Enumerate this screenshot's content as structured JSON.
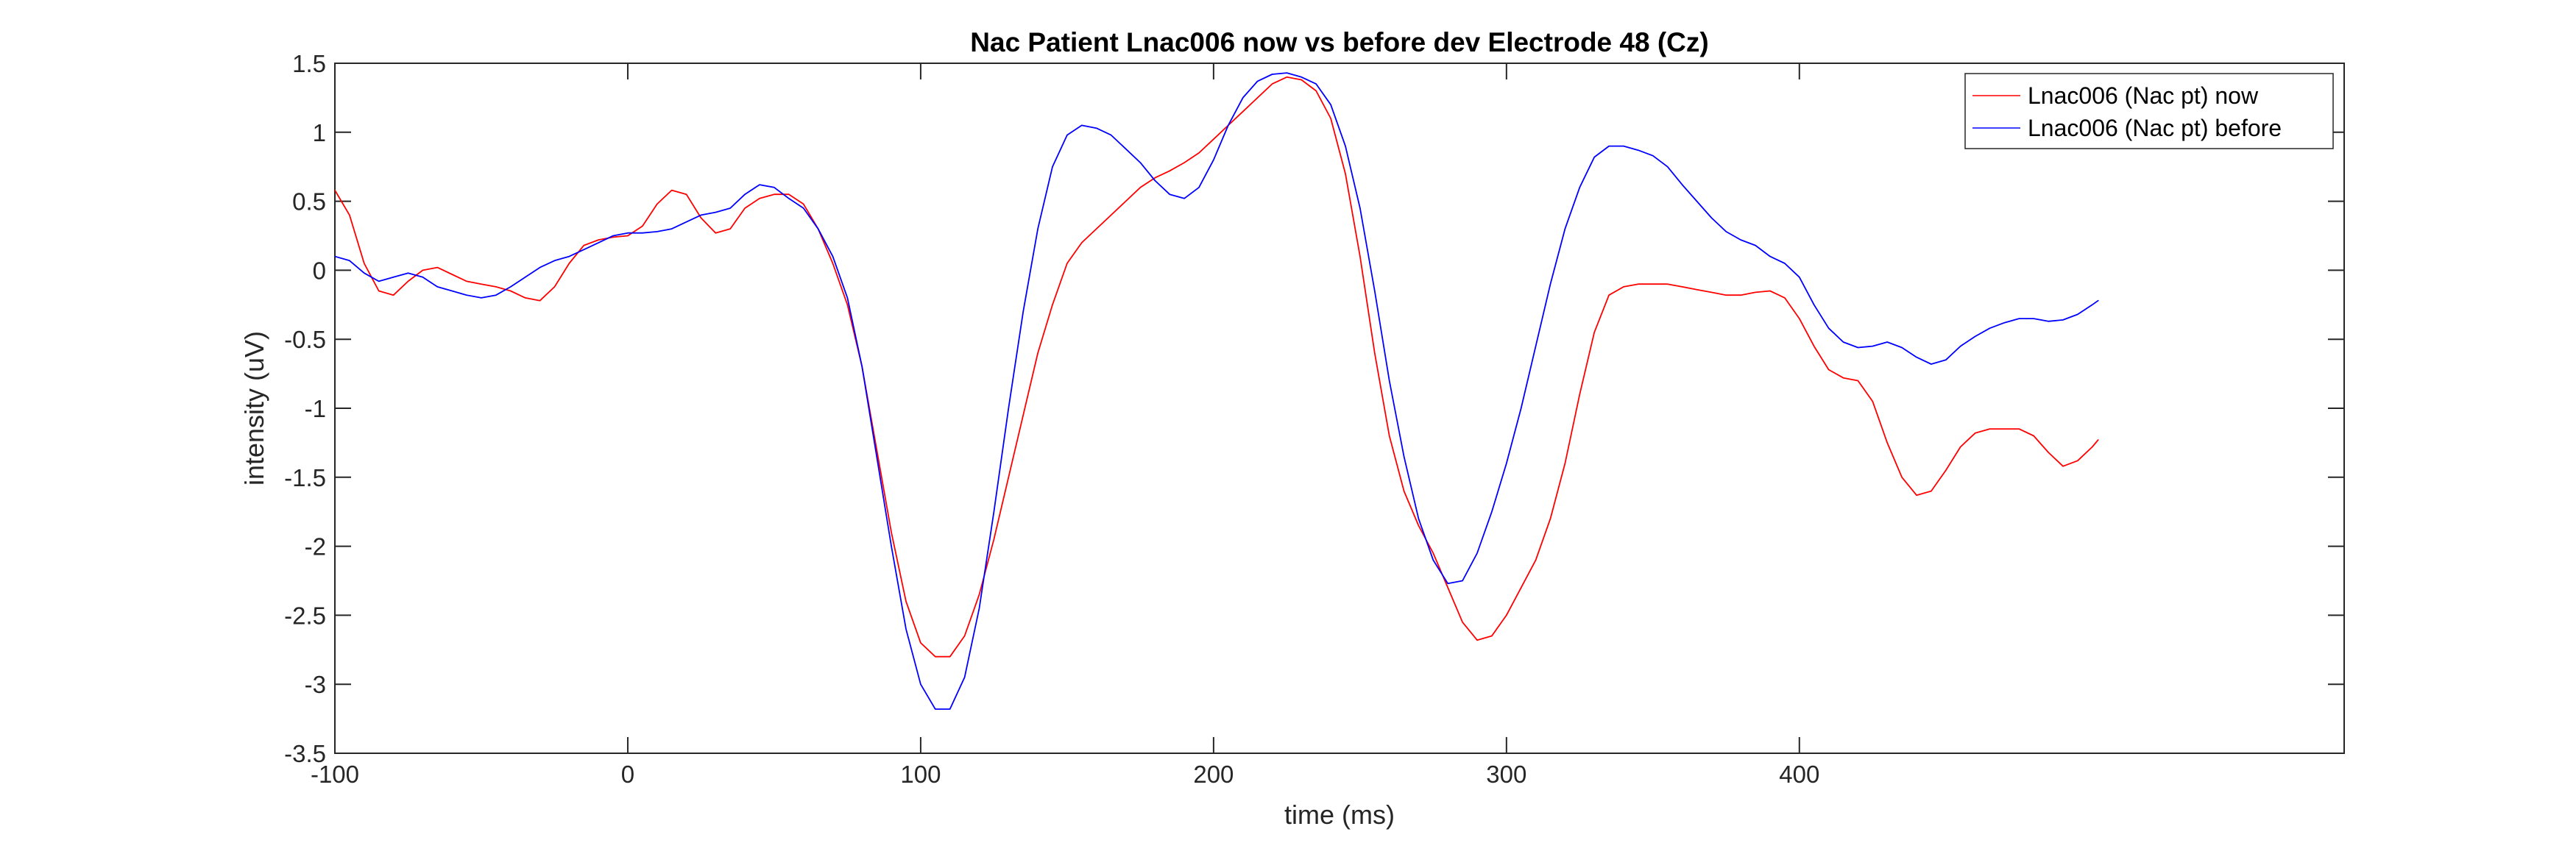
{
  "chart_data": {
    "type": "line",
    "title": "Nac Patient Lnac006 now vs before dev Electrode 48 (Cz)",
    "xlabel": "time (ms)",
    "ylabel": "intensity (uV)",
    "xlim": [
      -100,
      586
    ],
    "ylim": [
      -3.5,
      1.5
    ],
    "xticks": [
      -100,
      0,
      100,
      200,
      300,
      400
    ],
    "xtick_labels": [
      "-100",
      "0",
      "100",
      "200",
      "300",
      "400"
    ],
    "yticks": [
      1.5,
      1,
      0.5,
      0,
      -0.5,
      -1,
      -1.5,
      -2,
      -2.5,
      -3,
      -3.5
    ],
    "ytick_labels": [
      "1.5",
      "1",
      "0.5",
      "0",
      "-0.5",
      "-1",
      "-1.5",
      "-2",
      "-2.5",
      "-3",
      "-3.5"
    ],
    "grid": false,
    "legend": "top-right",
    "series": [
      {
        "name": "Lnac006 (Nac pt) now",
        "color": "#ff0000",
        "points": [
          [
            -100,
            0.58
          ],
          [
            -95,
            0.4
          ],
          [
            -90,
            0.05
          ],
          [
            -85,
            -0.15
          ],
          [
            -80,
            -0.18
          ],
          [
            -75,
            -0.08
          ],
          [
            -70,
            0.0
          ],
          [
            -65,
            0.02
          ],
          [
            -60,
            -0.03
          ],
          [
            -55,
            -0.08
          ],
          [
            -50,
            -0.1
          ],
          [
            -45,
            -0.12
          ],
          [
            -40,
            -0.15
          ],
          [
            -35,
            -0.2
          ],
          [
            -30,
            -0.22
          ],
          [
            -25,
            -0.12
          ],
          [
            -20,
            0.05
          ],
          [
            -15,
            0.18
          ],
          [
            -10,
            0.22
          ],
          [
            -5,
            0.24
          ],
          [
            0,
            0.25
          ],
          [
            5,
            0.32
          ],
          [
            10,
            0.48
          ],
          [
            15,
            0.58
          ],
          [
            20,
            0.55
          ],
          [
            25,
            0.38
          ],
          [
            30,
            0.27
          ],
          [
            35,
            0.3
          ],
          [
            40,
            0.45
          ],
          [
            45,
            0.52
          ],
          [
            50,
            0.55
          ],
          [
            55,
            0.55
          ],
          [
            60,
            0.48
          ],
          [
            65,
            0.3
          ],
          [
            70,
            0.05
          ],
          [
            75,
            -0.25
          ],
          [
            80,
            -0.7
          ],
          [
            85,
            -1.3
          ],
          [
            90,
            -1.9
          ],
          [
            95,
            -2.4
          ],
          [
            100,
            -2.7
          ],
          [
            105,
            -2.8
          ],
          [
            110,
            -2.8
          ],
          [
            115,
            -2.65
          ],
          [
            120,
            -2.35
          ],
          [
            125,
            -1.95
          ],
          [
            130,
            -1.5
          ],
          [
            135,
            -1.05
          ],
          [
            140,
            -0.6
          ],
          [
            145,
            -0.25
          ],
          [
            150,
            0.05
          ],
          [
            155,
            0.2
          ],
          [
            160,
            0.3
          ],
          [
            165,
            0.4
          ],
          [
            170,
            0.5
          ],
          [
            175,
            0.6
          ],
          [
            180,
            0.67
          ],
          [
            185,
            0.72
          ],
          [
            190,
            0.78
          ],
          [
            195,
            0.85
          ],
          [
            200,
            0.95
          ],
          [
            205,
            1.05
          ],
          [
            210,
            1.15
          ],
          [
            215,
            1.25
          ],
          [
            220,
            1.35
          ],
          [
            225,
            1.4
          ],
          [
            230,
            1.38
          ],
          [
            235,
            1.3
          ],
          [
            240,
            1.1
          ],
          [
            245,
            0.7
          ],
          [
            250,
            0.1
          ],
          [
            255,
            -0.6
          ],
          [
            260,
            -1.2
          ],
          [
            265,
            -1.6
          ],
          [
            270,
            -1.85
          ],
          [
            275,
            -2.05
          ],
          [
            280,
            -2.3
          ],
          [
            285,
            -2.55
          ],
          [
            290,
            -2.68
          ],
          [
            295,
            -2.65
          ],
          [
            300,
            -2.5
          ],
          [
            305,
            -2.3
          ],
          [
            310,
            -2.1
          ],
          [
            315,
            -1.8
          ],
          [
            320,
            -1.4
          ],
          [
            325,
            -0.9
          ],
          [
            330,
            -0.45
          ],
          [
            335,
            -0.18
          ],
          [
            340,
            -0.12
          ],
          [
            345,
            -0.1
          ],
          [
            350,
            -0.1
          ],
          [
            355,
            -0.1
          ],
          [
            360,
            -0.12
          ],
          [
            365,
            -0.14
          ],
          [
            370,
            -0.16
          ],
          [
            375,
            -0.18
          ],
          [
            380,
            -0.18
          ],
          [
            385,
            -0.16
          ],
          [
            390,
            -0.15
          ],
          [
            395,
            -0.2
          ],
          [
            400,
            -0.35
          ],
          [
            405,
            -0.55
          ],
          [
            410,
            -0.72
          ],
          [
            415,
            -0.78
          ],
          [
            420,
            -0.8
          ],
          [
            425,
            -0.95
          ],
          [
            430,
            -1.25
          ],
          [
            435,
            -1.5
          ],
          [
            440,
            -1.63
          ],
          [
            445,
            -1.6
          ],
          [
            450,
            -1.45
          ],
          [
            455,
            -1.28
          ],
          [
            460,
            -1.18
          ],
          [
            465,
            -1.15
          ],
          [
            470,
            -1.15
          ],
          [
            475,
            -1.15
          ],
          [
            480,
            -1.2
          ],
          [
            485,
            -1.32
          ],
          [
            490,
            -1.42
          ],
          [
            495,
            -1.38
          ],
          [
            500,
            -1.28
          ],
          [
            502,
            -1.23
          ]
        ]
      },
      {
        "name": "Lnac006 (Nac pt) before",
        "color": "#0000ff",
        "points": [
          [
            -100,
            0.1
          ],
          [
            -95,
            0.07
          ],
          [
            -90,
            -0.02
          ],
          [
            -85,
            -0.08
          ],
          [
            -80,
            -0.05
          ],
          [
            -75,
            -0.02
          ],
          [
            -70,
            -0.05
          ],
          [
            -65,
            -0.12
          ],
          [
            -60,
            -0.15
          ],
          [
            -55,
            -0.18
          ],
          [
            -50,
            -0.2
          ],
          [
            -45,
            -0.18
          ],
          [
            -40,
            -0.12
          ],
          [
            -35,
            -0.05
          ],
          [
            -30,
            0.02
          ],
          [
            -25,
            0.07
          ],
          [
            -20,
            0.1
          ],
          [
            -15,
            0.15
          ],
          [
            -10,
            0.2
          ],
          [
            -5,
            0.25
          ],
          [
            0,
            0.27
          ],
          [
            5,
            0.27
          ],
          [
            10,
            0.28
          ],
          [
            15,
            0.3
          ],
          [
            20,
            0.35
          ],
          [
            25,
            0.4
          ],
          [
            30,
            0.42
          ],
          [
            35,
            0.45
          ],
          [
            40,
            0.55
          ],
          [
            45,
            0.62
          ],
          [
            50,
            0.6
          ],
          [
            55,
            0.52
          ],
          [
            60,
            0.45
          ],
          [
            65,
            0.3
          ],
          [
            70,
            0.1
          ],
          [
            75,
            -0.2
          ],
          [
            80,
            -0.7
          ],
          [
            85,
            -1.35
          ],
          [
            90,
            -2.0
          ],
          [
            95,
            -2.6
          ],
          [
            100,
            -3.0
          ],
          [
            105,
            -3.18
          ],
          [
            110,
            -3.18
          ],
          [
            115,
            -2.95
          ],
          [
            120,
            -2.45
          ],
          [
            125,
            -1.75
          ],
          [
            130,
            -1.0
          ],
          [
            135,
            -0.3
          ],
          [
            140,
            0.3
          ],
          [
            145,
            0.75
          ],
          [
            150,
            0.98
          ],
          [
            155,
            1.05
          ],
          [
            160,
            1.03
          ],
          [
            165,
            0.98
          ],
          [
            170,
            0.88
          ],
          [
            175,
            0.78
          ],
          [
            180,
            0.65
          ],
          [
            185,
            0.55
          ],
          [
            190,
            0.52
          ],
          [
            195,
            0.6
          ],
          [
            200,
            0.8
          ],
          [
            205,
            1.05
          ],
          [
            210,
            1.25
          ],
          [
            215,
            1.37
          ],
          [
            220,
            1.42
          ],
          [
            225,
            1.43
          ],
          [
            230,
            1.4
          ],
          [
            235,
            1.35
          ],
          [
            240,
            1.2
          ],
          [
            245,
            0.9
          ],
          [
            250,
            0.45
          ],
          [
            255,
            -0.15
          ],
          [
            260,
            -0.8
          ],
          [
            265,
            -1.35
          ],
          [
            270,
            -1.8
          ],
          [
            275,
            -2.1
          ],
          [
            280,
            -2.27
          ],
          [
            285,
            -2.25
          ],
          [
            290,
            -2.05
          ],
          [
            295,
            -1.75
          ],
          [
            300,
            -1.4
          ],
          [
            305,
            -1.0
          ],
          [
            310,
            -0.55
          ],
          [
            315,
            -0.1
          ],
          [
            320,
            0.3
          ],
          [
            325,
            0.6
          ],
          [
            330,
            0.82
          ],
          [
            335,
            0.9
          ],
          [
            340,
            0.9
          ],
          [
            345,
            0.87
          ],
          [
            350,
            0.83
          ],
          [
            355,
            0.75
          ],
          [
            360,
            0.62
          ],
          [
            365,
            0.5
          ],
          [
            370,
            0.38
          ],
          [
            375,
            0.28
          ],
          [
            380,
            0.22
          ],
          [
            385,
            0.18
          ],
          [
            390,
            0.1
          ],
          [
            395,
            0.05
          ],
          [
            400,
            -0.05
          ],
          [
            405,
            -0.25
          ],
          [
            410,
            -0.42
          ],
          [
            415,
            -0.52
          ],
          [
            420,
            -0.56
          ],
          [
            425,
            -0.55
          ],
          [
            430,
            -0.52
          ],
          [
            435,
            -0.56
          ],
          [
            440,
            -0.63
          ],
          [
            445,
            -0.68
          ],
          [
            450,
            -0.65
          ],
          [
            455,
            -0.55
          ],
          [
            460,
            -0.48
          ],
          [
            465,
            -0.42
          ],
          [
            470,
            -0.38
          ],
          [
            475,
            -0.35
          ],
          [
            480,
            -0.35
          ],
          [
            485,
            -0.37
          ],
          [
            490,
            -0.36
          ],
          [
            495,
            -0.32
          ],
          [
            500,
            -0.25
          ],
          [
            502,
            -0.22
          ]
        ]
      }
    ]
  }
}
